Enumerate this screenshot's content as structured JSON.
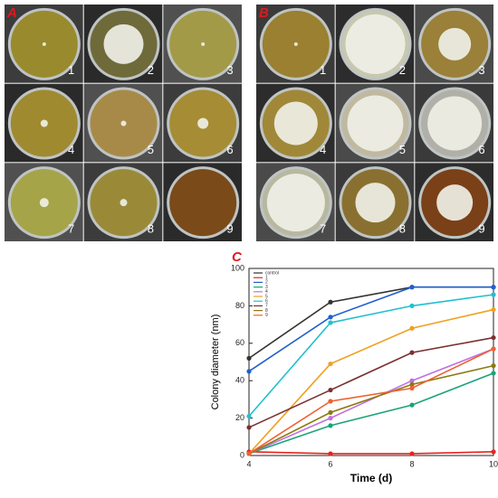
{
  "panels": [
    {
      "label": "A",
      "dishes": [
        "1",
        "2",
        "3",
        "4",
        "5",
        "6",
        "7",
        "8",
        "9"
      ]
    },
    {
      "label": "B",
      "dishes": [
        "1",
        "2",
        "3",
        "4",
        "5",
        "6",
        "7",
        "8",
        "9"
      ]
    }
  ],
  "chart_data": {
    "type": "line",
    "panel_label": "C",
    "x_label": "Time  (d)",
    "y_label": "Colony diameter  (nm)",
    "x": [
      4,
      6,
      8,
      10
    ],
    "xlim": [
      4,
      10
    ],
    "xticks": [
      4,
      6,
      8,
      10
    ],
    "ylim": [
      0,
      100
    ],
    "yticks": [
      0,
      20,
      40,
      60,
      80,
      100
    ],
    "legend": "upper left",
    "series": [
      {
        "name": "control",
        "color": "#333333",
        "values": [
          52,
          82,
          90,
          90
        ]
      },
      {
        "name": "1",
        "color": "#e8231e",
        "values": [
          2,
          1,
          1,
          2
        ]
      },
      {
        "name": "2",
        "color": "#1f5fd0",
        "values": [
          45,
          74,
          90,
          90
        ]
      },
      {
        "name": "3",
        "color": "#1aa37a",
        "values": [
          1,
          16,
          27,
          44
        ]
      },
      {
        "name": "4",
        "color": "#c070e0",
        "values": [
          1,
          20,
          40,
          57
        ]
      },
      {
        "name": "5",
        "color": "#f0a020",
        "values": [
          1,
          49,
          68,
          78
        ]
      },
      {
        "name": "6",
        "color": "#20c0d0",
        "values": [
          21,
          71,
          80,
          86
        ]
      },
      {
        "name": "7",
        "color": "#7a3030",
        "values": [
          15,
          35,
          55,
          63
        ]
      },
      {
        "name": "8",
        "color": "#8a7a10",
        "values": [
          1,
          23,
          38,
          48
        ]
      },
      {
        "name": "9",
        "color": "#f06030",
        "values": [
          1,
          29,
          36,
          57
        ]
      }
    ]
  }
}
